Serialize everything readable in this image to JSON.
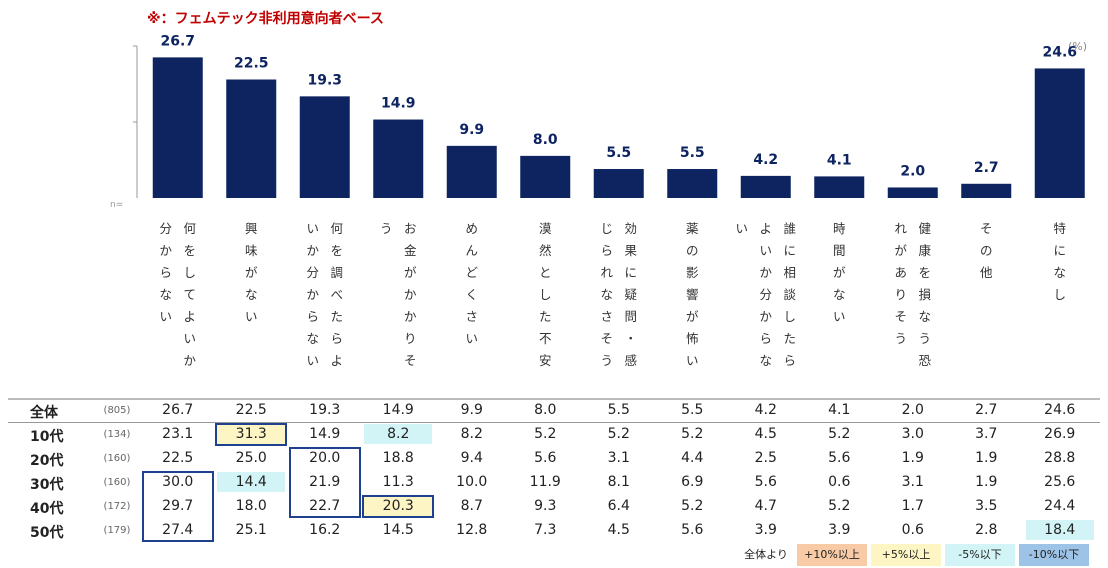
{
  "note": "※：フェムテック非利用意向者ベース",
  "unit": "(%)",
  "n_mark": "n=",
  "chart_data": {
    "type": "bar",
    "categories": [
      "何をしてよいか分からない",
      "興味がない",
      "何を調べたらよいか分からない",
      "お金がかかりそう",
      "めんどくさい",
      "漠然とした不安",
      "効果に疑問・感じられなさそう",
      "薬の影響が怖い",
      "誰に相談したらよいか分からない",
      "時間がない",
      "健康を損なう恐れがありそう",
      "その他",
      "特になし"
    ],
    "label_columns": [
      [
        "何をしてよいか",
        "分からない"
      ],
      [
        "興味がない"
      ],
      [
        "何を調べたらよ",
        "いか分からない"
      ],
      [
        "お金がかかりそ",
        "う"
      ],
      [
        "めんどくさい"
      ],
      [
        "漠然とした不安"
      ],
      [
        "効果に疑問・感",
        "じられなさそう"
      ],
      [
        "薬の影響が怖い"
      ],
      [
        "誰に相談したら",
        "よいか分からな",
        "い"
      ],
      [
        "時間がない"
      ],
      [
        "健康を損なう恐",
        "れがありそう"
      ],
      [
        "その他"
      ],
      [
        "特になし"
      ]
    ],
    "values": [
      26.7,
      22.5,
      19.3,
      14.9,
      9.9,
      8.0,
      5.5,
      5.5,
      4.2,
      4.1,
      2.0,
      2.7,
      24.6
    ],
    "value_labels": [
      "26.7",
      "22.5",
      "19.3",
      "14.9",
      "9.9",
      "8.0",
      "5.5",
      "5.5",
      "4.2",
      "4.1",
      "2.0",
      "2.7",
      "24.6"
    ],
    "bar_color": "#0d2461",
    "ylim": [
      0,
      30
    ]
  },
  "table": {
    "rows": [
      {
        "label": "全体",
        "n": "(805)",
        "values": [
          "26.7",
          "22.5",
          "19.3",
          "14.9",
          "9.9",
          "8.0",
          "5.5",
          "5.5",
          "4.2",
          "4.1",
          "2.0",
          "2.7",
          "24.6"
        ],
        "fills": [
          "",
          "",
          "",
          "",
          "",
          "",
          "",
          "",
          "",
          "",
          "",
          "",
          ""
        ]
      },
      {
        "label": "10代",
        "n": "(134)",
        "values": [
          "23.1",
          "31.3",
          "14.9",
          "8.2",
          "8.2",
          "5.2",
          "5.2",
          "5.2",
          "4.5",
          "5.2",
          "3.0",
          "3.7",
          "26.9"
        ],
        "fills": [
          "",
          "yellow",
          "",
          "lightblue",
          "",
          "",
          "",
          "",
          "",
          "",
          "",
          "",
          ""
        ]
      },
      {
        "label": "20代",
        "n": "(160)",
        "values": [
          "22.5",
          "25.0",
          "20.0",
          "18.8",
          "9.4",
          "5.6",
          "3.1",
          "4.4",
          "2.5",
          "5.6",
          "1.9",
          "1.9",
          "28.8"
        ],
        "fills": [
          "",
          "",
          "",
          "",
          "",
          "",
          "",
          "",
          "",
          "",
          "",
          "",
          ""
        ]
      },
      {
        "label": "30代",
        "n": "(160)",
        "values": [
          "30.0",
          "14.4",
          "21.9",
          "11.3",
          "10.0",
          "11.9",
          "8.1",
          "6.9",
          "5.6",
          "0.6",
          "3.1",
          "1.9",
          "25.6"
        ],
        "fills": [
          "",
          "lightblue",
          "",
          "",
          "",
          "",
          "",
          "",
          "",
          "",
          "",
          "",
          ""
        ]
      },
      {
        "label": "40代",
        "n": "(172)",
        "values": [
          "29.7",
          "18.0",
          "22.7",
          "20.3",
          "8.7",
          "9.3",
          "6.4",
          "5.2",
          "4.7",
          "5.2",
          "1.7",
          "3.5",
          "24.4"
        ],
        "fills": [
          "",
          "",
          "",
          "yellow",
          "",
          "",
          "",
          "",
          "",
          "",
          "",
          "",
          ""
        ]
      },
      {
        "label": "50代",
        "n": "(179)",
        "values": [
          "27.4",
          "25.1",
          "16.2",
          "14.5",
          "12.8",
          "7.3",
          "4.5",
          "5.6",
          "3.9",
          "3.9",
          "0.6",
          "2.8",
          "18.4"
        ],
        "fills": [
          "",
          "",
          "",
          "",
          "",
          "",
          "",
          "",
          "",
          "",
          "",
          "",
          "lightblue"
        ]
      }
    ]
  },
  "legend": {
    "prefix": "全体より",
    "items": [
      {
        "label": "+10%以上",
        "color": "#f8cba6"
      },
      {
        "label": "+5%以上",
        "color": "#fdf5c4"
      },
      {
        "label": "-5%以下",
        "color": "#d3f4f6"
      },
      {
        "label": "-10%以下",
        "color": "#9dc3e6"
      }
    ]
  },
  "colors": {
    "yellow": "#fdf5c4",
    "lightblue": "#d3f4f6",
    "box": "#1f3f8f"
  }
}
